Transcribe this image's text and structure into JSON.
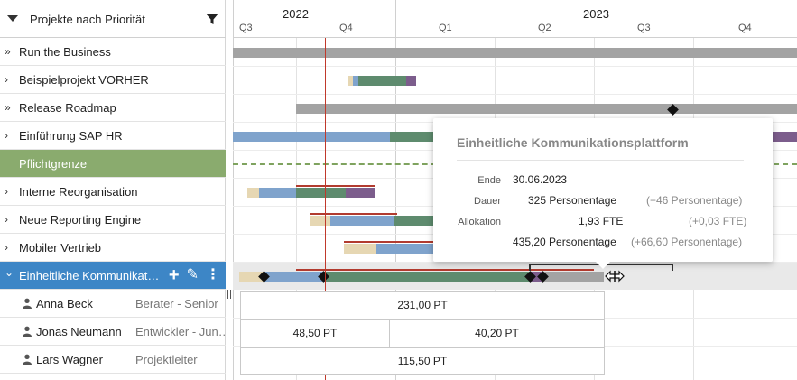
{
  "sidebar": {
    "header_title": "Projekte nach Priorität",
    "rows": [
      {
        "label": "Run the Business",
        "chevron": "»"
      },
      {
        "label": "Beispielprojekt VORHER",
        "chevron": "›"
      },
      {
        "label": "Release Roadmap",
        "chevron": "»"
      },
      {
        "label": "Einführung SAP HR",
        "chevron": "›"
      },
      {
        "label": "Pflichtgrenze",
        "chevron": ""
      },
      {
        "label": "Interne Reorganisation",
        "chevron": "›"
      },
      {
        "label": "Neue Reporting Engine",
        "chevron": "›"
      },
      {
        "label": "Mobiler Vertrieb",
        "chevron": "›"
      },
      {
        "label": "Einheitliche Kommunikat…",
        "chevron": "⌄"
      }
    ],
    "selected_actions": {
      "add": "+",
      "edit": "✎",
      "more": "⋮"
    },
    "people": [
      {
        "name": "Anna Beck",
        "role": "Berater - Senior"
      },
      {
        "name": "Jonas Neumann",
        "role": "Entwickler - Jun…"
      },
      {
        "name": "Lars Wagner",
        "role": "Projektleiter"
      }
    ]
  },
  "timeline": {
    "years": [
      {
        "label": "2022"
      },
      {
        "label": "2023"
      }
    ],
    "quarters": [
      "Q3",
      "Q4",
      "Q1",
      "Q2",
      "Q3",
      "Q4"
    ]
  },
  "tooltip": {
    "title": "Einheitliche Kommunikationsplattform",
    "ende_label": "Ende",
    "ende_value": "30.06.2023",
    "dauer_label": "Dauer",
    "dauer_value": "325 Personentage",
    "dauer_delta": "(+46 Personentage)",
    "allokation_label": "Allokation",
    "allokation_value": "1,93 FTE",
    "allokation_delta": "(+0,03 FTE)",
    "summe_value": "435,20 Personentage",
    "summe_delta": "(+66,60 Personentage)"
  },
  "allocation": {
    "anna": "231,00 PT",
    "jonas_a": "48,50 PT",
    "jonas_b": "40,20 PT",
    "lars": "115,50 PT"
  },
  "colors": {
    "accent": "#3d86c6",
    "pflicht": "#8aab6e",
    "bar_gray": "#a3a3a3",
    "bar_blue": "#7fa3cc",
    "bar_green": "#5e8b6e",
    "bar_purple": "#7c5d8c",
    "bar_beige": "#e6d7b3",
    "today_line": "#c0392b"
  }
}
